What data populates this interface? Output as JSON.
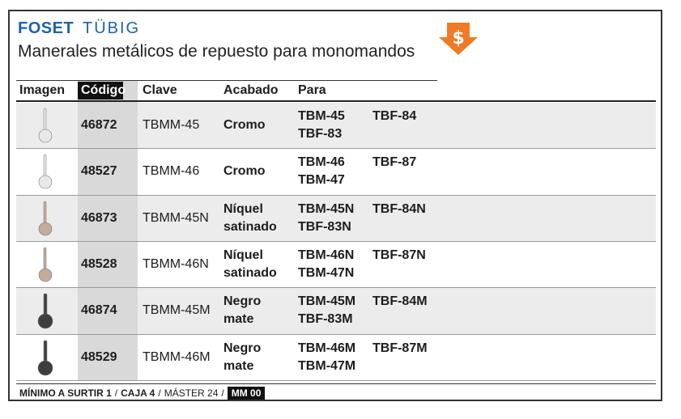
{
  "header": {
    "brand": "FOSET",
    "sub_brand": "TÜBIG",
    "title": "Manerales metálicos de repuesto para monomandos"
  },
  "table": {
    "columns": [
      "Imagen",
      "Código",
      "Clave",
      "Acabado",
      "Para"
    ],
    "rows": [
      {
        "codigo": "46872",
        "clave": "TBMM-45",
        "acabado": [
          "Cromo"
        ],
        "para": [
          "TBM-45",
          "TBF-84",
          "TBF-83"
        ]
      },
      {
        "codigo": "48527",
        "clave": "TBMM-46",
        "acabado": [
          "Cromo"
        ],
        "para": [
          "TBM-46",
          "TBF-87",
          "TBM-47"
        ]
      },
      {
        "codigo": "46873",
        "clave": "TBMM-45N",
        "acabado": [
          "Níquel",
          "satinado"
        ],
        "para": [
          "TBM-45N",
          "TBF-84N",
          "TBF-83N"
        ]
      },
      {
        "codigo": "48528",
        "clave": "TBMM-46N",
        "acabado": [
          "Níquel",
          "satinado"
        ],
        "para": [
          "TBM-46N",
          "TBF-87N",
          "TBM-47N"
        ]
      },
      {
        "codigo": "46874",
        "clave": "TBMM-45M",
        "acabado": [
          "Negro",
          "mate"
        ],
        "para": [
          "TBM-45M",
          "TBF-84M",
          "TBF-83M"
        ]
      },
      {
        "codigo": "48529",
        "clave": "TBMM-46M",
        "acabado": [
          "Negro",
          "mate"
        ],
        "para": [
          "TBM-46M",
          "TBF-87M",
          "TBM-47M"
        ]
      }
    ]
  },
  "footer": {
    "items": [
      "MÍNIMO A SURTIR 1",
      "CAJA 4",
      "MÁSTER 24"
    ],
    "separator": "/",
    "badge": "MM 00"
  }
}
